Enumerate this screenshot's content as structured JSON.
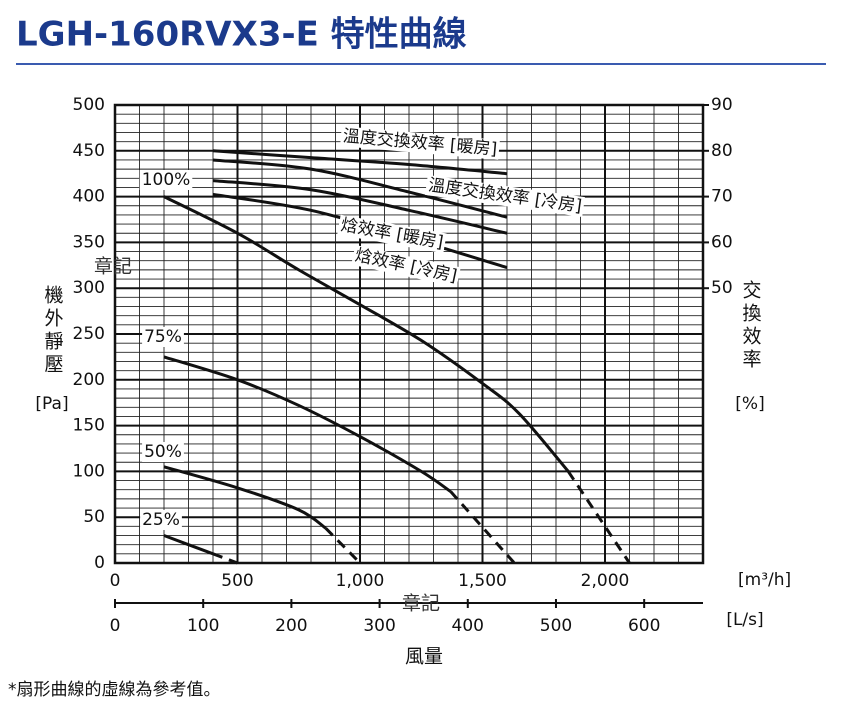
{
  "chart_data": {
    "type": "line",
    "title": "LGH-160RVX3-E 特性曲線",
    "x_label": "風量",
    "x_unit": "[m³/h]",
    "x2_unit": "[L/s]",
    "y_label": "機外靜壓",
    "y_unit": "[Pa]",
    "y2_label": "交換效率",
    "y2_unit": "[%]",
    "xlim": [
      0,
      2400
    ],
    "xticks": [
      0,
      500,
      {
        "value": 1000,
        "label": "1,000"
      },
      {
        "value": 1500,
        "label": "1,500"
      },
      {
        "value": 2000,
        "label": "2,000"
      }
    ],
    "x2lim": [
      0,
      666.7
    ],
    "x2ticks": [
      0,
      100,
      200,
      300,
      400,
      500,
      600
    ],
    "ylim": [
      0,
      500
    ],
    "yticks": [
      0,
      50,
      100,
      150,
      200,
      250,
      300,
      350,
      400,
      450,
      500
    ],
    "y2lim": [
      -10,
      90
    ],
    "y2ticks": [
      50,
      60,
      70,
      80,
      90
    ],
    "grid": true,
    "xminor": 100,
    "yminor": 10,
    "series": [
      {
        "name": "100%",
        "color": "#111111",
        "x": [
          200,
          500,
          750,
          1000,
          1250,
          1500,
          1650,
          1850
        ],
        "values": [
          400,
          360,
          320,
          282,
          243,
          196,
          163,
          100
        ],
        "dashed_x": [
          1850,
          2100
        ],
        "dashed_values": [
          100,
          0
        ]
      },
      {
        "name": "75%",
        "color": "#111111",
        "x": [
          200,
          500,
          750,
          1000,
          1250,
          1370
        ],
        "values": [
          225,
          200,
          172,
          138,
          100,
          78
        ],
        "dashed_x": [
          1370,
          1630
        ],
        "dashed_values": [
          78,
          0
        ]
      },
      {
        "name": "50%",
        "color": "#111111",
        "x": [
          200,
          500,
          750,
          860
        ],
        "values": [
          105,
          82,
          58,
          38
        ],
        "dashed_x": [
          860,
          1000
        ],
        "dashed_values": [
          38,
          0
        ]
      },
      {
        "name": "25%",
        "color": "#111111",
        "x": [
          200,
          400
        ],
        "values": [
          30,
          10
        ],
        "dashed_x": [
          400,
          500
        ],
        "dashed_values": [
          10,
          0
        ]
      },
      {
        "name": "溫度交換效率 [暖房]",
        "color": "#111111",
        "axis": "y2",
        "x": [
          400,
          800,
          1200,
          1600
        ],
        "values": [
          80,
          78.5,
          77,
          75
        ]
      },
      {
        "name": "溫度交換效率 [冷房]",
        "color": "#111111",
        "axis": "y2",
        "x": [
          400,
          800,
          1200,
          1600
        ],
        "values": [
          78,
          76,
          71,
          65.5
        ]
      },
      {
        "name": "焓效率 [暖房]",
        "color": "#111111",
        "axis": "y2",
        "x": [
          400,
          800,
          1200,
          1600
        ],
        "values": [
          73.5,
          71.5,
          67,
          62
        ]
      },
      {
        "name": "焓效率 [冷房]",
        "color": "#111111",
        "axis": "y2",
        "x": [
          400,
          800,
          1200,
          1600
        ],
        "values": [
          70.5,
          67,
          61,
          54.5
        ]
      }
    ]
  },
  "note": "*扇形曲線的虛線為參考值。",
  "watermark": "章記"
}
